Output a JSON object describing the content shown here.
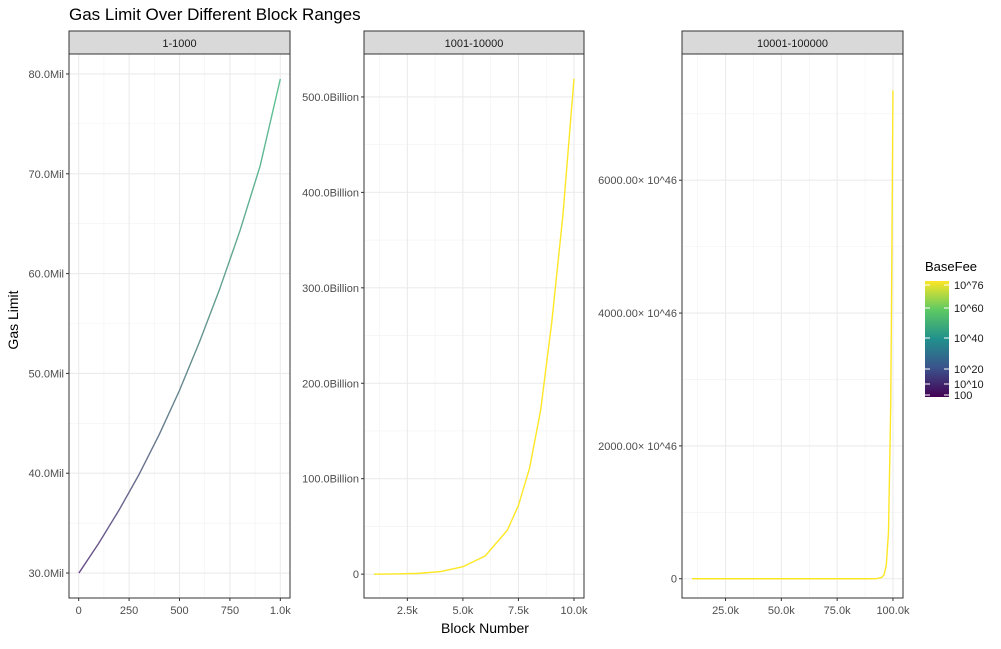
{
  "chart_data": {
    "type": "line",
    "title": "Gas Limit Over Different Block Ranges",
    "xlabel": "Block Number",
    "ylabel": "Gas Limit",
    "grid": true,
    "legend_position": "right",
    "facets": [
      {
        "label": "1-1000",
        "x_range": [
          1,
          1000
        ],
        "xlim": [
          -48,
          1048
        ],
        "ylim": [
          27500000,
          82000000
        ],
        "x_ticks": [
          0,
          250,
          500,
          750,
          1000
        ],
        "x_tick_labels": [
          "0",
          "250",
          "500",
          "750",
          "1.0k"
        ],
        "y_ticks": [
          30000000,
          40000000,
          50000000,
          60000000,
          70000000,
          80000000
        ],
        "y_tick_labels": [
          "30.0Mil",
          "40.0Mil",
          "50.0Mil",
          "60.0Mil",
          "70.0Mil",
          "80.0Mil"
        ],
        "series": {
          "x": [
            1,
            100,
            200,
            300,
            400,
            500,
            600,
            700,
            800,
            900,
            1000
          ],
          "y": [
            30000000,
            33000000,
            36300000,
            39900000,
            43900000,
            48300000,
            53200000,
            58500000,
            64300000,
            70800000,
            79500000
          ]
        },
        "color_from": "#6b4b8a",
        "color_to": "#5ec293"
      },
      {
        "label": "1001-10000",
        "x_range": [
          1001,
          10000
        ],
        "xlim": [
          550,
          10450
        ],
        "ylim": [
          -25000000000,
          545000000000
        ],
        "x_ticks": [
          2500,
          5000,
          7500,
          10000
        ],
        "x_tick_labels": [
          "2.5k",
          "5.0k",
          "7.5k",
          "10.0k"
        ],
        "y_ticks": [
          0,
          100000000000,
          200000000000,
          300000000000,
          400000000000,
          500000000000
        ],
        "y_tick_labels": [
          "0",
          "100.0Billion",
          "200.0Billion",
          "300.0Billion",
          "400.0Billion",
          "500.0Billion"
        ],
        "series": {
          "x": [
            1001,
            2000,
            3000,
            4000,
            5000,
            6000,
            7000,
            7500,
            8000,
            8500,
            9000,
            9500,
            10000
          ],
          "y": [
            0,
            200000000,
            800000000,
            2700000000,
            7800000000,
            19000000000,
            46000000000,
            72000000000,
            111000000000,
            172000000000,
            264000000000,
            376000000000,
            519000000000
          ]
        },
        "color": "#fde725"
      },
      {
        "label": "10001-100000",
        "x_range": [
          10001,
          100000
        ],
        "xlim": [
          5500,
          104500
        ],
        "ylim": [
          -2.9e+48,
          7.9e+49
        ],
        "x_ticks": [
          25000,
          50000,
          75000,
          100000
        ],
        "x_tick_labels": [
          "25.0k",
          "50.0k",
          "75.0k",
          "100.0k"
        ],
        "y_ticks": [
          0,
          2e+49,
          4e+49,
          6e+49
        ],
        "y_tick_labels": [
          "0",
          "2000.00× 10^46",
          "4000.00× 10^46",
          "6000.00× 10^46"
        ],
        "series": {
          "x": [
            10001,
            50000,
            80000,
            90000,
            93000,
            95000,
            96000,
            97000,
            98000,
            99000,
            99500,
            100000
          ],
          "y": [
            0,
            0,
            0,
            0,
            2e+46,
            2e+47,
            6e+47,
            2e+48,
            7e+48,
            2.6e+49,
            4.8e+49,
            7.35e+49
          ]
        },
        "color": "#fde725"
      }
    ],
    "legend": {
      "title": "BaseFee",
      "colors": [
        "#440154",
        "#3b528b",
        "#21908d",
        "#5dc963",
        "#fde725"
      ],
      "labels": [
        "10^76",
        "10^60",
        "10^40",
        "10^20",
        "10^10",
        "100"
      ]
    }
  }
}
